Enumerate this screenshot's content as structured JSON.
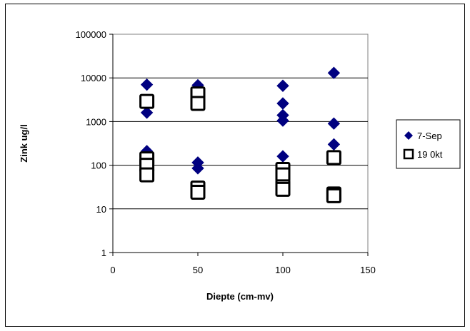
{
  "chart_data": {
    "type": "scatter",
    "xlabel": "Diepte (cm-mv)",
    "ylabel": "Zink ug/l",
    "xlim": [
      0,
      150
    ],
    "ylim": [
      1,
      100000
    ],
    "yscale": "log",
    "x_ticks": [
      0,
      50,
      100,
      150
    ],
    "x_tick_labels": [
      "0",
      "50",
      "100",
      "150"
    ],
    "y_ticks": [
      1,
      10,
      100,
      1000,
      10000,
      100000
    ],
    "y_tick_labels": [
      "1",
      "10",
      "100",
      "1000",
      "10000",
      "100000"
    ],
    "grid": "horizontal major",
    "legend_position": "right",
    "series": [
      {
        "name": "7-Sep",
        "marker": "diamond",
        "color": "#000080",
        "points": [
          {
            "x": 20,
            "y": 7000
          },
          {
            "x": 20,
            "y": 1600
          },
          {
            "x": 20,
            "y": 210
          },
          {
            "x": 50,
            "y": 6800
          },
          {
            "x": 50,
            "y": 115
          },
          {
            "x": 50,
            "y": 85
          },
          {
            "x": 100,
            "y": 6600
          },
          {
            "x": 100,
            "y": 2600
          },
          {
            "x": 100,
            "y": 1400
          },
          {
            "x": 100,
            "y": 1050
          },
          {
            "x": 100,
            "y": 160
          },
          {
            "x": 130,
            "y": 13000
          },
          {
            "x": 130,
            "y": 900
          },
          {
            "x": 130,
            "y": 300
          }
        ]
      },
      {
        "name": "19 0kt",
        "marker": "square-open",
        "color": "#000000",
        "points": [
          {
            "x": 20,
            "y": 2900
          },
          {
            "x": 20,
            "y": 140
          },
          {
            "x": 20,
            "y": 100
          },
          {
            "x": 20,
            "y": 60
          },
          {
            "x": 50,
            "y": 4300
          },
          {
            "x": 50,
            "y": 2600
          },
          {
            "x": 50,
            "y": 30
          },
          {
            "x": 50,
            "y": 24
          },
          {
            "x": 100,
            "y": 80
          },
          {
            "x": 100,
            "y": 60
          },
          {
            "x": 100,
            "y": 32
          },
          {
            "x": 100,
            "y": 28
          },
          {
            "x": 130,
            "y": 150
          },
          {
            "x": 130,
            "y": 22
          },
          {
            "x": 130,
            "y": 20
          }
        ]
      }
    ]
  }
}
